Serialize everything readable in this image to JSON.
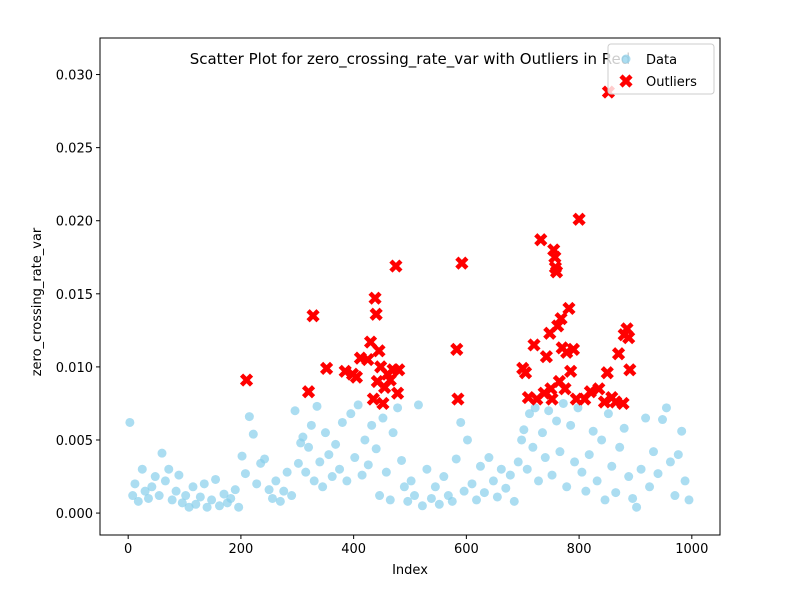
{
  "chart_data": {
    "type": "scatter",
    "title": "Scatter Plot for zero_crossing_rate_var with Outliers in Red",
    "x_label": "Index",
    "y_label": "zero_crossing_rate_var",
    "xlim": [
      -50,
      1050
    ],
    "ylim": [
      -0.0015,
      0.0325
    ],
    "xticks": [
      0,
      200,
      400,
      600,
      800,
      1000
    ],
    "yticks": [
      {
        "value": 0,
        "label": "0.000"
      },
      {
        "value": 0.005,
        "label": "0.005"
      },
      {
        "value": 0.01,
        "label": "0.010"
      },
      {
        "value": 0.015,
        "label": "0.015"
      },
      {
        "value": 0.02,
        "label": "0.020"
      },
      {
        "value": 0.025,
        "label": "0.025"
      },
      {
        "value": 0.03,
        "label": "0.030"
      }
    ],
    "legend": "upper right",
    "series": [
      {
        "name": "Data",
        "color": "#87ceeb",
        "marker": "o",
        "x": [
          3,
          8,
          12,
          18,
          25,
          30,
          36,
          42,
          48,
          55,
          60,
          66,
          72,
          78,
          85,
          90,
          96,
          102,
          108,
          115,
          120,
          128,
          135,
          140,
          148,
          155,
          162,
          170,
          176,
          182,
          190,
          196,
          202,
          208,
          215,
          222,
          228,
          235,
          242,
          250,
          256,
          262,
          270,
          276,
          282,
          290,
          296,
          302,
          306,
          310,
          315,
          320,
          325,
          330,
          335,
          340,
          345,
          350,
          356,
          362,
          368,
          375,
          380,
          388,
          395,
          402,
          408,
          415,
          420,
          426,
          432,
          440,
          446,
          452,
          458,
          465,
          470,
          478,
          485,
          490,
          496,
          502,
          508,
          515,
          522,
          530,
          538,
          545,
          552,
          560,
          568,
          575,
          582,
          590,
          596,
          602,
          610,
          618,
          625,
          632,
          640,
          648,
          655,
          662,
          670,
          678,
          685,
          692,
          698,
          702,
          708,
          712,
          718,
          722,
          728,
          735,
          740,
          746,
          752,
          760,
          766,
          772,
          778,
          785,
          792,
          798,
          805,
          812,
          818,
          825,
          832,
          840,
          846,
          852,
          858,
          865,
          872,
          880,
          888,
          895,
          902,
          910,
          918,
          925,
          932,
          940,
          948,
          955,
          962,
          970,
          976,
          982,
          988,
          995
        ],
        "values": [
          0.0062,
          0.0012,
          0.002,
          0.0008,
          0.003,
          0.0015,
          0.001,
          0.0018,
          0.0025,
          0.0012,
          0.0041,
          0.0022,
          0.003,
          0.0009,
          0.0015,
          0.0026,
          0.0007,
          0.0012,
          0.0004,
          0.0018,
          0.0006,
          0.0011,
          0.002,
          0.0004,
          0.0009,
          0.0023,
          0.0005,
          0.0013,
          0.0007,
          0.001,
          0.0016,
          0.0004,
          0.0039,
          0.0027,
          0.0066,
          0.0054,
          0.002,
          0.0034,
          0.0037,
          0.0016,
          0.001,
          0.0022,
          0.0008,
          0.0015,
          0.0028,
          0.0012,
          0.007,
          0.0034,
          0.0048,
          0.0052,
          0.0028,
          0.0045,
          0.006,
          0.0022,
          0.0073,
          0.0035,
          0.0018,
          0.0055,
          0.004,
          0.0025,
          0.0047,
          0.003,
          0.0062,
          0.0022,
          0.0068,
          0.0038,
          0.0074,
          0.0026,
          0.005,
          0.0033,
          0.006,
          0.0044,
          0.0012,
          0.0065,
          0.0028,
          0.0009,
          0.0055,
          0.0072,
          0.0036,
          0.0018,
          0.0008,
          0.0022,
          0.0012,
          0.0074,
          0.0005,
          0.003,
          0.001,
          0.0018,
          0.0006,
          0.0025,
          0.0012,
          0.0008,
          0.0037,
          0.0062,
          0.0015,
          0.005,
          0.002,
          0.0009,
          0.0032,
          0.0014,
          0.0038,
          0.0022,
          0.0011,
          0.003,
          0.0017,
          0.0026,
          0.0008,
          0.0035,
          0.005,
          0.0057,
          0.003,
          0.0068,
          0.0045,
          0.0072,
          0.0022,
          0.0055,
          0.0038,
          0.007,
          0.0026,
          0.0063,
          0.0042,
          0.0075,
          0.0018,
          0.006,
          0.0035,
          0.0072,
          0.0028,
          0.0015,
          0.004,
          0.0056,
          0.0022,
          0.005,
          0.0009,
          0.0068,
          0.0032,
          0.0014,
          0.0045,
          0.0058,
          0.0025,
          0.001,
          0.0004,
          0.003,
          0.0065,
          0.0018,
          0.0042,
          0.0027,
          0.0064,
          0.0072,
          0.0035,
          0.0012,
          0.004,
          0.0056,
          0.0022,
          0.0009
        ]
      },
      {
        "name": "Outliers",
        "color": "#ff0000",
        "marker": "X",
        "x": [
          210,
          320,
          328,
          352,
          385,
          398,
          405,
          412,
          425,
          430,
          435,
          438,
          440,
          442,
          445,
          448,
          452,
          455,
          460,
          465,
          470,
          475,
          478,
          480,
          583,
          585,
          592,
          700,
          705,
          710,
          720,
          725,
          732,
          738,
          742,
          748,
          750,
          752,
          755,
          757,
          758,
          760,
          762,
          765,
          768,
          770,
          775,
          778,
          782,
          785,
          790,
          795,
          800,
          810,
          820,
          835,
          845,
          850,
          852,
          858,
          865,
          870,
          878,
          880,
          885,
          888,
          890
        ],
        "values": [
          0.0091,
          0.0083,
          0.0135,
          0.0099,
          0.0097,
          0.0095,
          0.0093,
          0.0106,
          0.0105,
          0.0117,
          0.0078,
          0.0147,
          0.0136,
          0.009,
          0.0111,
          0.01,
          0.0075,
          0.0086,
          0.0095,
          0.0091,
          0.0098,
          0.0169,
          0.0082,
          0.0098,
          0.0112,
          0.0078,
          0.0171,
          0.0099,
          0.0096,
          0.0079,
          0.0115,
          0.0078,
          0.0187,
          0.0082,
          0.0107,
          0.0123,
          0.0085,
          0.0078,
          0.018,
          0.0175,
          0.0168,
          0.0165,
          0.0128,
          0.009,
          0.0133,
          0.0113,
          0.0085,
          0.011,
          0.014,
          0.0097,
          0.0112,
          0.0078,
          0.0201,
          0.0078,
          0.0083,
          0.0085,
          0.0076,
          0.0096,
          0.0288,
          0.0079,
          0.0076,
          0.0109,
          0.0075,
          0.0122,
          0.0126,
          0.012,
          0.0098
        ]
      }
    ]
  }
}
